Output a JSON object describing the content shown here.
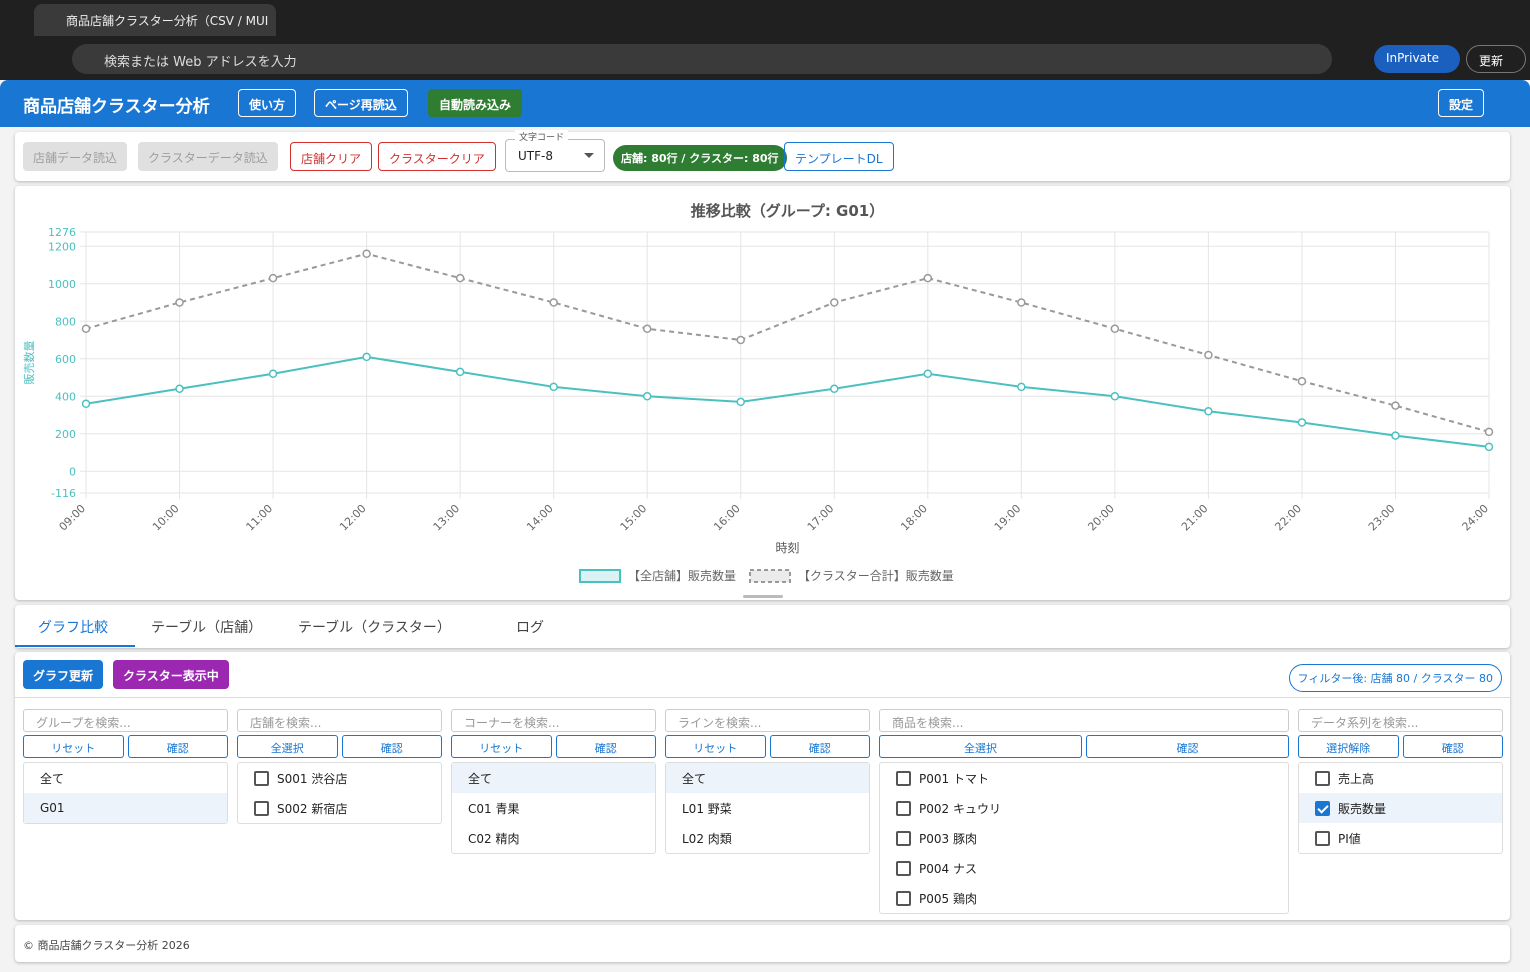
{
  "browser": {
    "tab_title": "商品店舗クラスター分析（CSV / MUI",
    "address": "検索または Web アドレスを入力",
    "inprivate": "InPrivate",
    "update": "更新"
  },
  "header": {
    "title": "商品店舗クラスター分析",
    "buttons": [
      "使い方",
      "ページ再読込"
    ],
    "auto_load": "自動読み込み",
    "settings": "設定"
  },
  "toolbar": {
    "load_store": "店舗データ読込",
    "load_cluster": "クラスターデータ読込",
    "clear_store": "店舗クリア",
    "clear_cluster": "クラスタークリア",
    "encoding_label": "文字コード",
    "encoding": "UTF-8",
    "status": "店舗: 80行 / クラスター: 80行",
    "template": "テンプレートDL"
  },
  "chart_data": {
    "type": "line",
    "title": "推移比較（グループ: G01）",
    "x_label": "時刻",
    "y_label": "販売数量",
    "categories": [
      "09:00",
      "10:00",
      "11:00",
      "12:00",
      "13:00",
      "14:00",
      "15:00",
      "16:00",
      "17:00",
      "18:00",
      "19:00",
      "20:00",
      "21:00",
      "22:00",
      "23:00",
      "24:00"
    ],
    "series": [
      {
        "name": "【全店舗】販売数量",
        "color": "#4bc0c0",
        "values": [
          360,
          440,
          520,
          610,
          530,
          450,
          400,
          370,
          440,
          520,
          450,
          400,
          320,
          260,
          190,
          130
        ]
      },
      {
        "name": "【クラスター合計】販売数量",
        "color": "#999999",
        "dashed": true,
        "values": [
          760,
          900,
          1030,
          1160,
          1030,
          900,
          760,
          700,
          900,
          1030,
          900,
          760,
          620,
          480,
          350,
          210
        ]
      }
    ],
    "ylim": [
      -116,
      1276
    ],
    "yticks": [
      -116,
      0,
      200,
      400,
      600,
      800,
      1000,
      1200,
      1276
    ],
    "grid": true
  },
  "tabs": {
    "items": [
      "グラフ比較",
      "テーブル（店舗）",
      "テーブル（クラスター）",
      "ログ"
    ],
    "active": 0
  },
  "controls": {
    "refresh": "グラフ更新",
    "cluster_view": "クラスター表示中",
    "filter_status": "フィルター後: 店舗 80 / クラスター 80"
  },
  "filters": [
    {
      "placeholder": "グループを検索...",
      "buttons": [
        "リセット",
        "確認"
      ],
      "items": [
        {
          "label": "全て"
        },
        {
          "label": "G01",
          "selected": true
        }
      ]
    },
    {
      "placeholder": "店舗を検索...",
      "buttons": [
        "全選択",
        "確認"
      ],
      "items": [
        {
          "label": "S001 渋谷店",
          "checked": false
        },
        {
          "label": "S002 新宿店",
          "checked": false
        }
      ]
    },
    {
      "placeholder": "コーナーを検索...",
      "buttons": [
        "リセット",
        "確認"
      ],
      "items": [
        {
          "label": "全て",
          "selected": true
        },
        {
          "label": "C01 青果"
        },
        {
          "label": "C02 精肉"
        }
      ]
    },
    {
      "placeholder": "ラインを検索...",
      "buttons": [
        "リセット",
        "確認"
      ],
      "items": [
        {
          "label": "全て",
          "selected": true
        },
        {
          "label": "L01 野菜"
        },
        {
          "label": "L02 肉類"
        }
      ]
    },
    {
      "placeholder": "商品を検索...",
      "buttons": [
        "全選択",
        "確認"
      ],
      "items": [
        {
          "label": "P001 トマト",
          "checked": false
        },
        {
          "label": "P002 キュウリ",
          "checked": false
        },
        {
          "label": "P003 豚肉",
          "checked": false
        },
        {
          "label": "P004 ナス",
          "checked": false
        },
        {
          "label": "P005 鶏肉",
          "checked": false
        }
      ]
    },
    {
      "placeholder": "データ系列を検索...",
      "buttons": [
        "選択解除",
        "確認"
      ],
      "items": [
        {
          "label": "売上高",
          "checked": false
        },
        {
          "label": "販売数量",
          "checked": true,
          "selected": true
        },
        {
          "label": "PI値",
          "checked": false
        }
      ]
    }
  ],
  "footer": "© 商品店舗クラスター分析 2026"
}
